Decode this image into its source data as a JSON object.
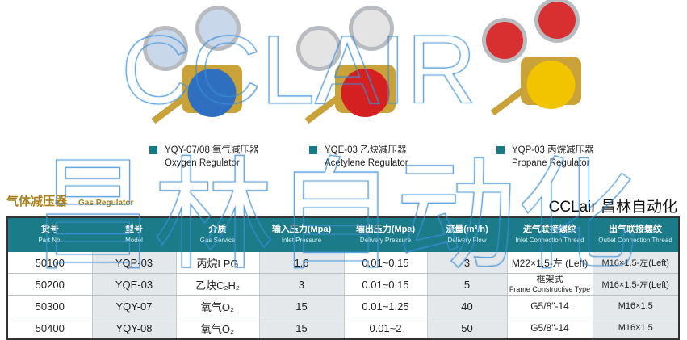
{
  "products": [
    {
      "model_label": "YQY-07/08 氧气减压器",
      "en": "Oxygen Regulator",
      "gauge_color": "#c8d8ea",
      "body_color": "#2f6fc0"
    },
    {
      "model_label": "YQE-03 乙炔减压器",
      "en": "Acetylene Regulator",
      "gauge_color": "#e4e4e4",
      "body_color": "#d42020"
    },
    {
      "model_label": "YQP-03 丙烷减压器",
      "en": "Propane Regulator",
      "gauge_color": "#d83030",
      "body_color": "#f2c400"
    }
  ],
  "section_title": {
    "zh": "气体减压器",
    "en": "Gas Regulator"
  },
  "table": {
    "headers": [
      {
        "zh": "货号",
        "en": "Part No."
      },
      {
        "zh": "型号",
        "en": "Model"
      },
      {
        "zh": "介质",
        "en": "Gas Service"
      },
      {
        "zh": "输入压力(Mpa)",
        "en": "Inlet Pressure"
      },
      {
        "zh": "输出压力(Mpa)",
        "en": "Delivery Pressure"
      },
      {
        "zh": "流量(m³/h)",
        "en": "Delivery Flow"
      },
      {
        "zh": "进气联接螺纹",
        "en": "Inlet Connection Thread"
      },
      {
        "zh": "出气联接螺纹",
        "en": "Outlet Connection Thread"
      }
    ],
    "rows": [
      [
        "50100",
        "YQP-03",
        "丙烷LPG",
        "1.6",
        "0.01~0.15",
        "3",
        "M22×1.5-左 (Left)",
        "M16×1.5-左(Left)"
      ],
      [
        "50200",
        "YQE-03",
        "乙炔C₂H₂",
        "3",
        "0.01~0.15",
        "5",
        "框架式",
        "M16×1.5-左(Left)"
      ],
      [
        "50300",
        "YQY-07",
        "氧气O₂",
        "15",
        "0.01~1.25",
        "40",
        "G5/8\"-14",
        "M16×1.5"
      ],
      [
        "50400",
        "YQY-08",
        "氧气O₂",
        "15",
        "0.01~2",
        "50",
        "G5/8\"-14",
        "M16×1.5"
      ]
    ],
    "row2_inlet_en": "Frame Constructive Type"
  },
  "watermark": {
    "latin": "CCLAIR",
    "cjk": "昌林自动化",
    "footer": "CCLair 昌林自动化"
  },
  "colors": {
    "header": "#1b7b88",
    "title": "#a8801a"
  }
}
